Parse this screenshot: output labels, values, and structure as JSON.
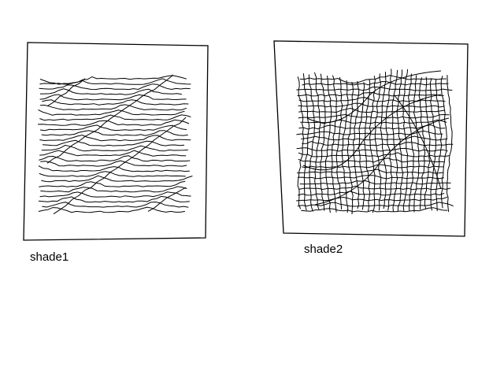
{
  "panels": [
    {
      "id": "shade1",
      "label": "shade1",
      "style": "horizontal-hatching"
    },
    {
      "id": "shade2",
      "label": "shade2",
      "style": "cross-hatching"
    }
  ],
  "colors": {
    "background": "#ffffff",
    "ink": "#000000"
  }
}
